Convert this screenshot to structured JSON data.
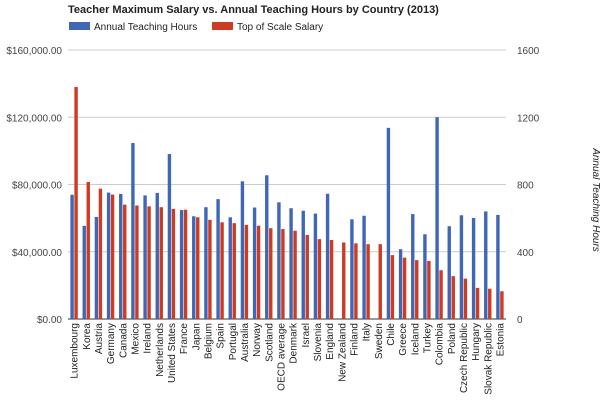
{
  "chart_data": {
    "type": "bar",
    "title": "Teacher Maximum Salary vs. Annual Teaching Hours by Country (2013)",
    "xlabel": "",
    "ylabel_left": "",
    "ylabel_right": "Annual Teaching Hours",
    "ylim_left": [
      0,
      160000
    ],
    "ylim_right": [
      0,
      1600
    ],
    "yticks_left": [
      "$0.00",
      "$40,000.00",
      "$80,000.00",
      "$120,000.00",
      "$160,000.00"
    ],
    "yticks_right": [
      "0",
      "400",
      "800",
      "1200",
      "1600"
    ],
    "grid": true,
    "legend_position": "top-left",
    "categories": [
      "Luxembourg",
      "Korea",
      "Austria",
      "Germany",
      "Canada",
      "Mexico",
      "Ireland",
      "Netherlands",
      "United States",
      "France",
      "Japan",
      "Belgium",
      "Spain",
      "Portugal",
      "Australia",
      "Norway",
      "Scotland",
      "OECD average",
      "Denmark",
      "Israel",
      "Slovenia",
      "England",
      "New Zealand",
      "Finland",
      "Italy",
      "Sweden",
      "Chile",
      "Greece",
      "Iceland",
      "Turkey",
      "Colombia",
      "Poland",
      "Czech Republic",
      "Hungary",
      "Slovak Republic",
      "Estonia"
    ],
    "series": [
      {
        "name": "Annual Teaching Hours",
        "axis": "right",
        "color": "#4066b8",
        "values": [
          739,
          554,
          607,
          752,
          744,
          1047,
          735,
          750,
          981,
          648,
          611,
          665,
          713,
          605,
          819,
          663,
          855,
          694,
          659,
          644,
          627,
          745,
          0,
          593,
          614,
          0,
          1137,
          415,
          624,
          504,
          1200,
          552,
          617,
          601,
          640,
          619
        ]
      },
      {
        "name": "Top of Scale Salary",
        "axis": "left",
        "color": "#cc3b22",
        "values": [
          138000,
          81500,
          77500,
          74000,
          68000,
          67500,
          67000,
          66500,
          65500,
          65000,
          60500,
          59000,
          57500,
          57000,
          56000,
          55500,
          54000,
          53500,
          52500,
          50000,
          47500,
          47000,
          45500,
          45000,
          44500,
          44500,
          38000,
          36500,
          35000,
          34500,
          29000,
          25500,
          24000,
          18500,
          18000,
          16500
        ]
      }
    ]
  }
}
